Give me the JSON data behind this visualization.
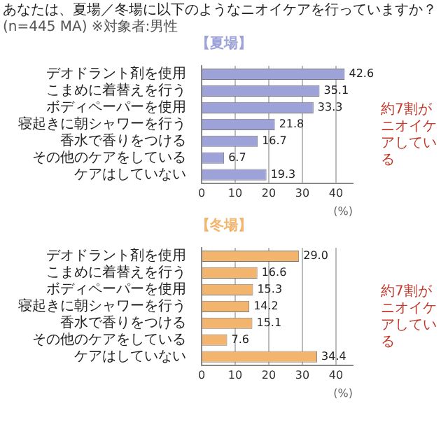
{
  "chart_data": [
    {
      "type": "bar",
      "orientation": "horizontal",
      "title": "あなたは、夏場／冬場に以下のようなニオイケアを行っていますか？",
      "subtitle": "(n=445 MA) ※対象者:男性",
      "categories": [
        "デオドラント剤を使用",
        "こまめに着替えを行う",
        "ボディペーパーを使用",
        "寝起きに朝シャワーを行う",
        "香水で香りをつける",
        "その他のケアをしている",
        "ケアはしていない"
      ],
      "series": [
        {
          "name": "【夏場】",
          "color": "#9da3d8",
          "values": [
            42.6,
            35.1,
            33.3,
            21.8,
            16.7,
            6.7,
            19.3
          ],
          "value_labels": [
            "42.6",
            "35.1",
            "33.3",
            "21.8",
            "16.7",
            "6.7",
            "19.3"
          ]
        }
      ],
      "xlim": [
        0,
        45
      ],
      "xticks": [
        0,
        10,
        20,
        30,
        40
      ],
      "xlabel": "(%)",
      "grid": "x",
      "annotations": [
        "約7割がニオイケアしている"
      ]
    },
    {
      "type": "bar",
      "orientation": "horizontal",
      "categories": [
        "デオドラント剤を使用",
        "こまめに着替えを行う",
        "ボディペーパーを使用",
        "寝起きに朝シャワーを行う",
        "香水で香りをつける",
        "その他のケアをしている",
        "ケアはしていない"
      ],
      "series": [
        {
          "name": "【冬場】",
          "color": "#f3b56e",
          "values": [
            29.0,
            16.6,
            15.3,
            14.2,
            15.1,
            7.6,
            34.4
          ],
          "value_labels": [
            "29.0",
            "16.6",
            "15.3",
            "14.2",
            "15.1",
            "7.6",
            "34.4"
          ]
        }
      ],
      "xlim": [
        0,
        45
      ],
      "xticks": [
        0,
        10,
        20,
        30,
        40
      ],
      "xlabel": "(%)",
      "grid": "x",
      "annotations": [
        "約7割がニオイケアしている"
      ]
    }
  ]
}
